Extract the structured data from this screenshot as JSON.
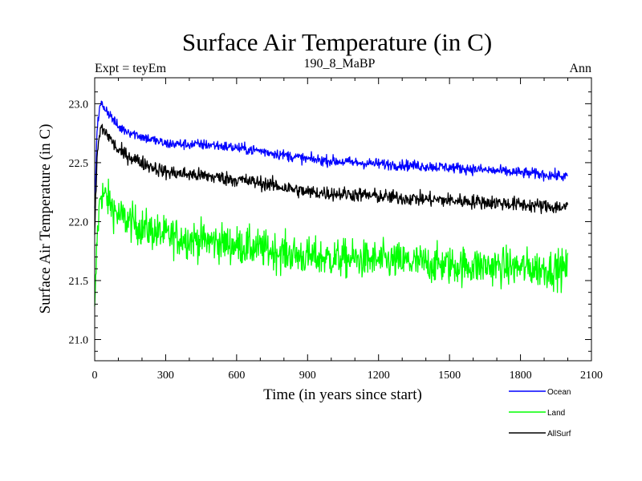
{
  "chart_data": {
    "type": "line",
    "title": "Surface Air Temperature (in C)",
    "subtitle_left": "Expt = teyEm",
    "subtitle_center": "190_8_MaBP",
    "subtitle_right": "Ann",
    "xlabel": "Time (in years since start)",
    "ylabel": "Surface Air Temperature (in C)",
    "xlim": [
      0,
      2100
    ],
    "ylim": [
      20.82,
      23.22
    ],
    "xticks": [
      0,
      300,
      600,
      900,
      1200,
      1500,
      1800,
      2100
    ],
    "xtick_labels": [
      "0",
      "300",
      "600",
      "900",
      "1200",
      "1500",
      "1800",
      "2100"
    ],
    "yticks": [
      21.0,
      21.5,
      22.0,
      22.5,
      23.0
    ],
    "ytick_labels": [
      "21.0",
      "21.5",
      "22.0",
      "22.5",
      "23.0"
    ],
    "legend_position": "bottom-right, below plot",
    "series": [
      {
        "name": "Ocean",
        "color": "#0000ff",
        "noise": 0.045,
        "x": [
          0,
          10,
          25,
          50,
          100,
          200,
          300,
          500,
          700,
          900,
          1100,
          1300,
          1500,
          1700,
          1900,
          2000
        ],
        "y": [
          22.1,
          22.8,
          23.0,
          22.95,
          22.8,
          22.72,
          22.66,
          22.65,
          22.6,
          22.53,
          22.5,
          22.48,
          22.46,
          22.43,
          22.4,
          22.38
        ]
      },
      {
        "name": "Land",
        "color": "#00ff00",
        "noise": 0.16,
        "x": [
          0,
          10,
          25,
          50,
          100,
          200,
          300,
          500,
          700,
          900,
          1100,
          1300,
          1500,
          1700,
          1900,
          2000
        ],
        "y": [
          21.2,
          21.85,
          22.25,
          22.2,
          22.05,
          21.95,
          21.88,
          21.83,
          21.77,
          21.7,
          21.68,
          21.66,
          21.63,
          21.62,
          21.6,
          21.6
        ]
      },
      {
        "name": "AllSurf",
        "color": "#000000",
        "noise": 0.06,
        "x": [
          0,
          10,
          25,
          50,
          100,
          200,
          300,
          500,
          700,
          900,
          1100,
          1300,
          1500,
          1700,
          1900,
          2000
        ],
        "y": [
          21.9,
          22.55,
          22.8,
          22.75,
          22.6,
          22.5,
          22.42,
          22.38,
          22.33,
          22.25,
          22.23,
          22.2,
          22.18,
          22.16,
          22.13,
          22.12
        ]
      }
    ]
  }
}
